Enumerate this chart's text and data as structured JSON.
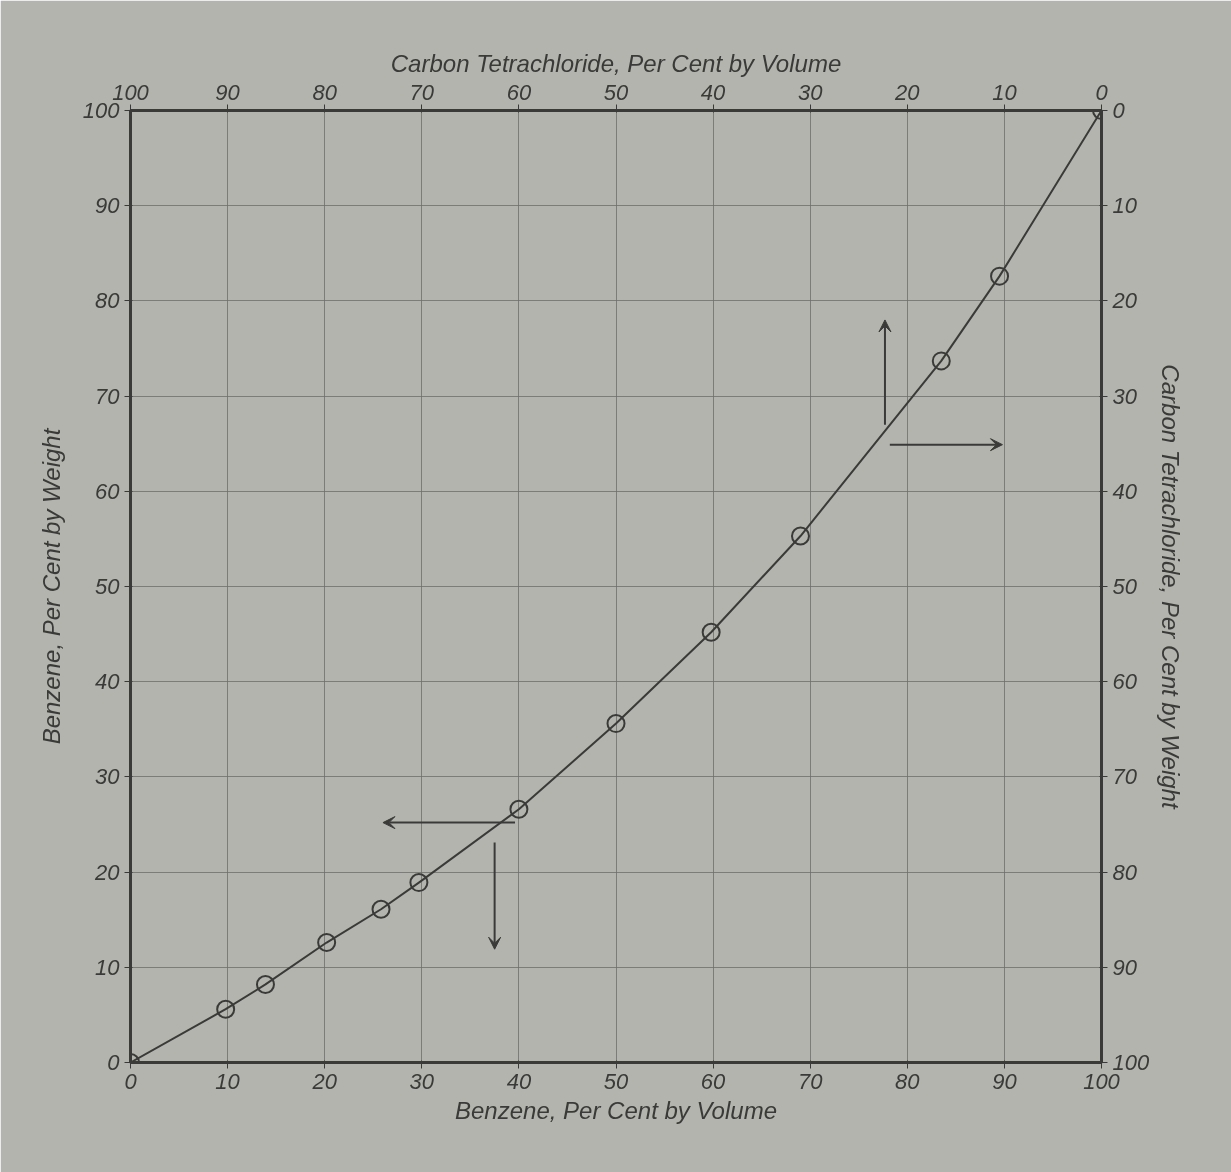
{
  "chart_data": {
    "type": "line",
    "xlabel": "Benzene, Per Cent by Volume",
    "ylabel": "Benzene, Per Cent by Weight",
    "x2label": "Carbon Tetrachloride, Per Cent by Volume",
    "y2label": "Carbon Tetrachloride, Per Cent by Weight",
    "xlim": [
      0,
      100
    ],
    "xticks": [
      0,
      10,
      20,
      30,
      40,
      50,
      60,
      70,
      80,
      90,
      100
    ],
    "ylim": [
      0,
      100
    ],
    "yticks": [
      0,
      10,
      20,
      30,
      40,
      50,
      60,
      70,
      80,
      90,
      100
    ],
    "x2lim": [
      100,
      0
    ],
    "x2ticks": [
      100,
      90,
      80,
      70,
      60,
      50,
      40,
      30,
      20,
      10,
      0
    ],
    "y2lim": [
      100,
      0
    ],
    "y2ticks": [
      100,
      90,
      80,
      70,
      60,
      50,
      40,
      30,
      20,
      10,
      0
    ],
    "grid": true,
    "marker": "circle",
    "line_style": "solid",
    "series": [
      {
        "color": "#3a3a38",
        "x": [
          0,
          9.8,
          13.9,
          20.2,
          25.8,
          29.7,
          40,
          50,
          59.8,
          69,
          83.5,
          89.5,
          100
        ],
        "values": [
          0,
          5.6,
          8.2,
          12.6,
          16.1,
          18.9,
          26.6,
          35.6,
          45.2,
          55.3,
          73.7,
          82.6,
          100
        ]
      }
    ]
  }
}
